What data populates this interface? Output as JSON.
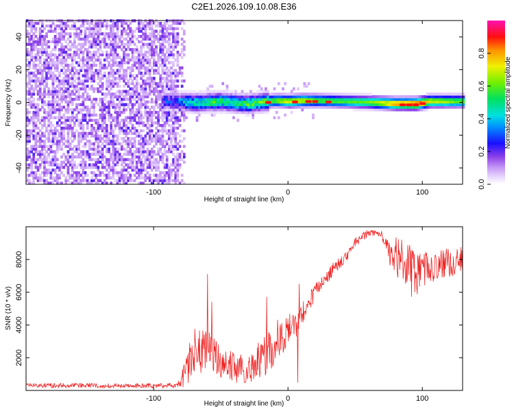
{
  "figure_title": "C2E1.2026.109.10.08.E36",
  "chart_data": [
    {
      "type": "heatmap",
      "title": "C2E1.2026.109.10.08.E36",
      "xlabel": "Height of straight line (km)",
      "ylabel": "Frequency (Hz)",
      "xlim": [
        -195,
        130
      ],
      "ylim": [
        -50,
        50
      ],
      "xticks": [
        -100,
        0,
        100
      ],
      "xtick_labels": [
        "-100",
        "0",
        "100"
      ],
      "yticks": [
        -40,
        -20,
        0,
        20,
        40
      ],
      "ytick_labels": [
        "-40",
        "-20",
        "0",
        "20",
        "40"
      ],
      "noise_region_x": [
        -195,
        -82
      ],
      "signal_track": [
        {
          "x": -85,
          "y": 0.0,
          "amp": 0.22
        },
        {
          "x": -78,
          "y": -0.5,
          "amp": 0.35
        },
        {
          "x": -70,
          "y": -1.0,
          "amp": 0.42
        },
        {
          "x": -60,
          "y": -0.5,
          "amp": 0.45
        },
        {
          "x": -50,
          "y": 0.0,
          "amp": 0.45
        },
        {
          "x": -40,
          "y": -1.0,
          "amp": 0.48
        },
        {
          "x": -30,
          "y": -1.5,
          "amp": 0.48
        },
        {
          "x": -20,
          "y": -0.5,
          "amp": 0.52
        },
        {
          "x": -10,
          "y": 0.5,
          "amp": 0.62
        },
        {
          "x": 0,
          "y": 0.0,
          "amp": 0.72
        },
        {
          "x": 10,
          "y": 0.5,
          "amp": 0.7
        },
        {
          "x": 20,
          "y": 0.5,
          "amp": 0.6
        },
        {
          "x": 40,
          "y": 0.0,
          "amp": 0.58
        },
        {
          "x": 60,
          "y": -0.5,
          "amp": 0.62
        },
        {
          "x": 80,
          "y": -1.5,
          "amp": 0.82
        },
        {
          "x": 95,
          "y": -1.5,
          "amp": 0.92
        },
        {
          "x": 105,
          "y": 0.0,
          "amp": 0.72
        },
        {
          "x": 130,
          "y": 0.0,
          "amp": 0.6
        }
      ],
      "hot_spots_x": [
        -15,
        5,
        15,
        20,
        30,
        85,
        90,
        95,
        100
      ],
      "colorbar": {
        "label": "Normalized spectral amplitude",
        "range": [
          0,
          1
        ],
        "ticks": [
          0.0,
          0.2,
          0.4,
          0.6,
          0.8
        ],
        "tick_labels": [
          "0.0",
          "0.2",
          "0.4",
          "0.6",
          "0.8"
        ]
      }
    },
    {
      "type": "line",
      "xlabel": "Height of straight line (km)",
      "ylabel": "SNR (10 * v/v)",
      "xlim": [
        -195,
        130
      ],
      "ylim": [
        0,
        10000
      ],
      "xticks": [
        -100,
        0,
        100
      ],
      "xtick_labels": [
        "-100",
        "0",
        "100"
      ],
      "yticks": [
        2000,
        4000,
        6000,
        8000
      ],
      "ytick_labels": [
        "2000",
        "4000",
        "6000",
        "8000"
      ],
      "color": "#ee2222",
      "envelope": {
        "x": [
          -195,
          -90,
          -80,
          -75,
          -70,
          -65,
          -60,
          -55,
          -50,
          -45,
          -40,
          -35,
          -30,
          -25,
          -20,
          -15,
          -10,
          -5,
          0,
          5,
          10,
          15,
          20,
          25,
          30,
          35,
          40,
          45,
          50,
          55,
          60,
          65,
          70,
          72,
          75,
          80,
          85,
          90,
          95,
          100,
          110,
          120,
          130
        ],
        "center": [
          300,
          300,
          400,
          1500,
          2400,
          2300,
          2300,
          2200,
          1800,
          1600,
          1400,
          1300,
          1200,
          1600,
          2100,
          2300,
          2600,
          3100,
          3700,
          4000,
          4600,
          5300,
          6000,
          6500,
          7000,
          7600,
          7900,
          8300,
          9000,
          9400,
          9600,
          9600,
          9500,
          9200,
          8400,
          8200,
          7800,
          7400,
          7000,
          7400,
          7600,
          7800,
          8000
        ],
        "spread": [
          150,
          150,
          250,
          1200,
          1500,
          1400,
          1400,
          1200,
          1000,
          1000,
          900,
          900,
          800,
          1000,
          1300,
          1500,
          1400,
          1000,
          900,
          900,
          700,
          600,
          500,
          400,
          400,
          400,
          400,
          300,
          300,
          300,
          200,
          200,
          300,
          400,
          700,
          1200,
          1400,
          1600,
          1400,
          1100,
          900,
          900,
          800
        ]
      },
      "spikes": [
        {
          "x": -60,
          "y": 7100
        },
        {
          "x": -57,
          "y": 5400
        },
        {
          "x": -16,
          "y": 5700
        },
        {
          "x": -8,
          "y": 4300
        },
        {
          "x": 7,
          "y": 500
        },
        {
          "x": 8,
          "y": 6500
        }
      ]
    }
  ]
}
